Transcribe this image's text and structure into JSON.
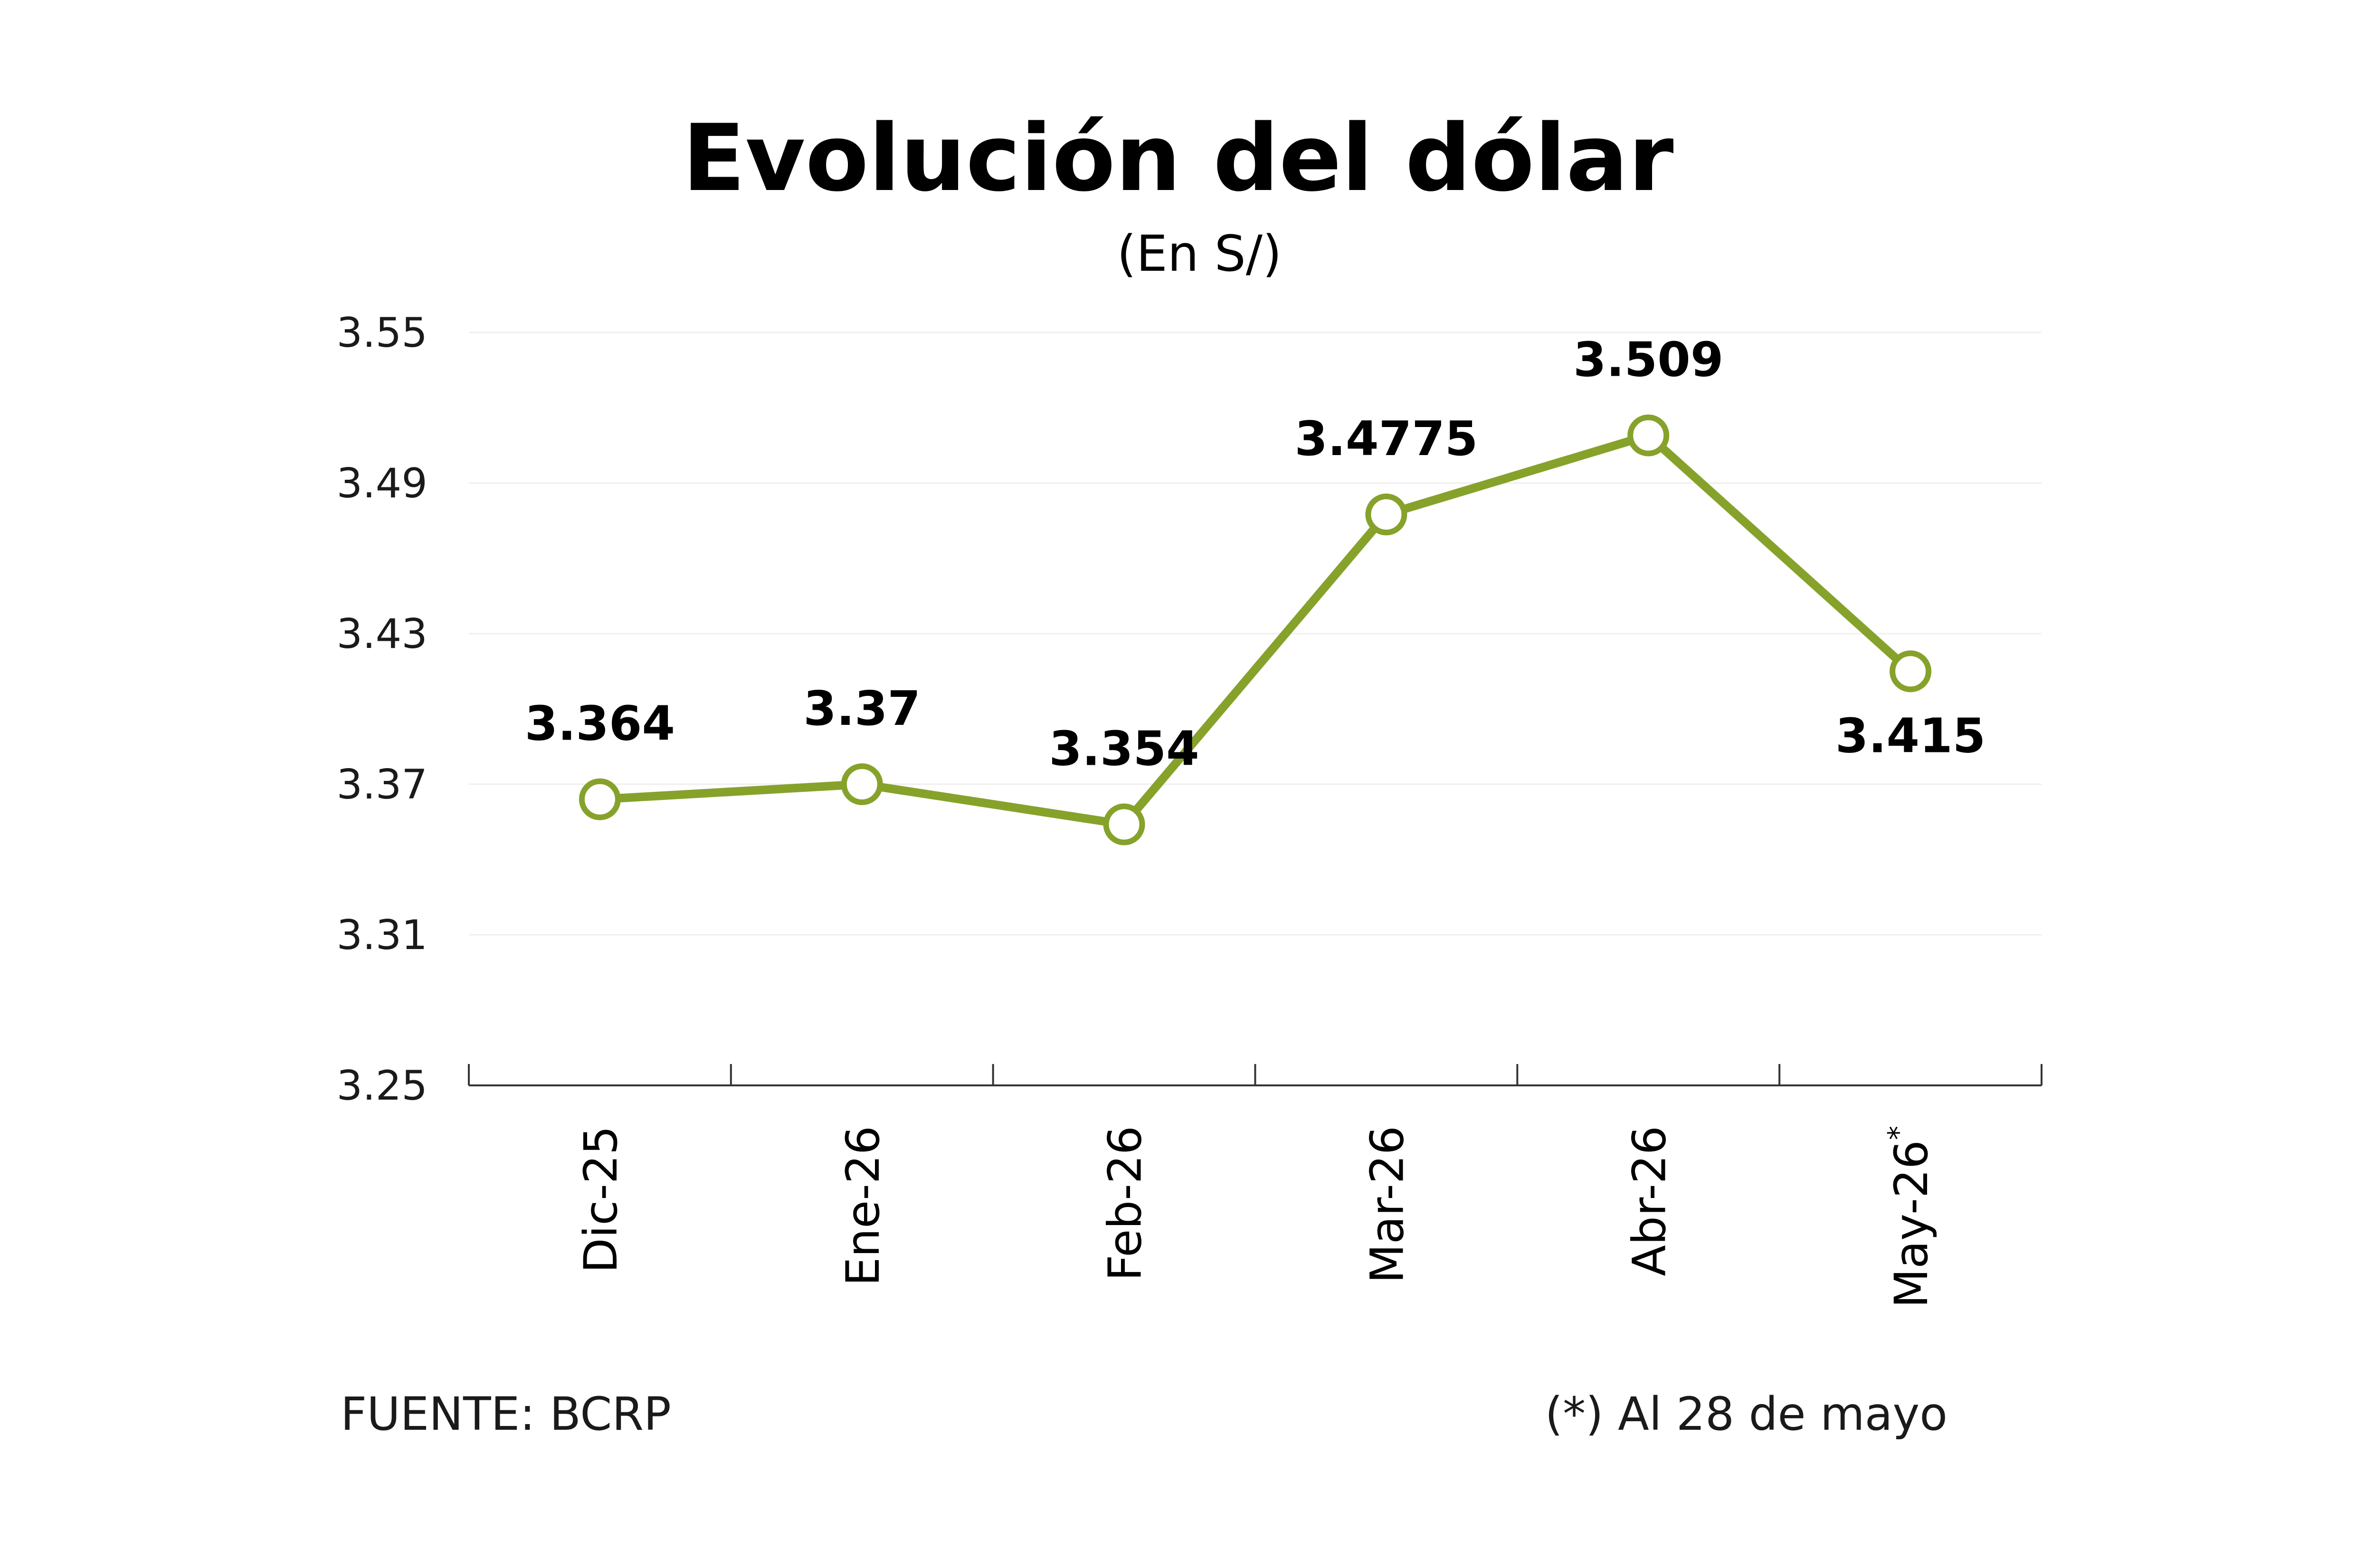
{
  "chart_data": {
    "type": "line",
    "title": "Evolución del dólar",
    "subtitle": "(En S/)",
    "categories": [
      "Dic-25",
      "Ene-26",
      "Feb-26",
      "Mar-26",
      "Abr-26",
      "May-26"
    ],
    "category_marks": [
      "",
      "",
      "",
      "",
      "",
      "*"
    ],
    "series": [
      {
        "values": [
          3.364,
          3.37,
          3.354,
          3.4775,
          3.509,
          3.415
        ],
        "value_labels": [
          "3.364",
          "3.37",
          "3.354",
          "3.4775",
          "3.509",
          "3.415"
        ],
        "label_positions": [
          "above",
          "above",
          "above",
          "above",
          "above",
          "below"
        ]
      }
    ],
    "yticks": [
      "3.55",
      "3.49",
      "3.43",
      "3.37",
      "3.31",
      "3.25"
    ],
    "ylim": [
      3.25,
      3.55
    ],
    "grid": true,
    "line_color": "#86a22b",
    "marker_fill": "#ffffff"
  },
  "footer": {
    "source": "FUENTE: BCRP",
    "note": "(*) Al 28 de mayo"
  }
}
